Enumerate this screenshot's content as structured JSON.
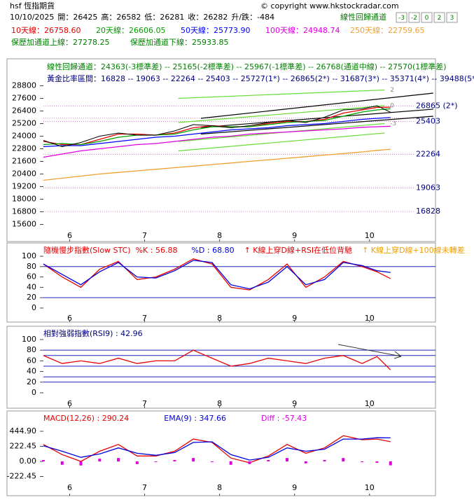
{
  "header": {
    "symbol": "hsf 恆指期貨",
    "copyright": "© copyright www.hkstockradar.com",
    "channel_title": "線性回歸通道",
    "channel_buttons": [
      -3,
      -2,
      0,
      2,
      3
    ],
    "date": "10/10/2025",
    "quotes": [
      {
        "label": "開：",
        "value": 26425
      },
      {
        "label": "高：",
        "value": 26582
      },
      {
        "label": "低：",
        "value": 26281
      },
      {
        "label": "收：",
        "value": 26282
      },
      {
        "label": "升/跌：",
        "value": -484
      }
    ]
  },
  "chart_data": [
    {
      "type": "line",
      "xlim": [
        5.65,
        10.88
      ],
      "xticks": [
        6,
        7,
        8,
        9,
        10
      ],
      "ylim": [
        15100,
        29500
      ],
      "yticks": [
        28800,
        27600,
        26400,
        25200,
        24000,
        22800,
        21600,
        20400,
        19200,
        18000,
        16800,
        15600
      ],
      "x": [
        5.65,
        5.9,
        6.15,
        6.4,
        6.65,
        6.9,
        7.15,
        7.4,
        7.65,
        7.9,
        8.15,
        8.4,
        8.65,
        8.9,
        9.15,
        9.4,
        9.65,
        9.9,
        10.1,
        10.28
      ],
      "values": [
        23600,
        23000,
        23400,
        24000,
        24300,
        24100,
        24100,
        24500,
        25100,
        25000,
        24800,
        25000,
        25300,
        25500,
        25300,
        25800,
        26500,
        26600,
        26900,
        26282
      ],
      "color": "#000000",
      "series": [
        {
          "name": "10天線：",
          "color": "#e60000",
          "last": 26758.6,
          "last_label": "26758.60",
          "values": [
            23500,
            23200,
            23200,
            23700,
            24200,
            24200,
            24100,
            24300,
            24800,
            25000,
            24900,
            24900,
            25200,
            25400,
            25400,
            25600,
            26200,
            26500,
            26750,
            26758
          ]
        },
        {
          "name": "20天線：",
          "color": "#00a000",
          "last": 26606.05,
          "values": [
            23200,
            23300,
            23200,
            23500,
            23900,
            24100,
            24100,
            24200,
            24600,
            24900,
            24900,
            24900,
            25100,
            25300,
            25400,
            25500,
            25900,
            26300,
            26500,
            26606
          ]
        },
        {
          "name": "50天線：",
          "color": "#0000ff",
          "last": 25773.9,
          "last_label": "25773.90",
          "values": [
            23000,
            23100,
            23100,
            23300,
            23500,
            23700,
            23900,
            24000,
            24200,
            24400,
            24600,
            24700,
            24800,
            25000,
            25100,
            25200,
            25400,
            25600,
            25700,
            25774
          ]
        },
        {
          "name": "100天線：",
          "color": "#e000e0",
          "last": 24948.74,
          "values": [
            22000,
            22300,
            22600,
            22800,
            23000,
            23200,
            23300,
            23500,
            23700,
            23900,
            24000,
            24200,
            24300,
            24400,
            24500,
            24600,
            24700,
            24850,
            24900,
            24949
          ]
        },
        {
          "name": "250天線：",
          "color": "#f0a030",
          "last": 22759.65,
          "values": [
            19800,
            20000,
            20200,
            20400,
            20550,
            20700,
            20850,
            21000,
            21150,
            21300,
            21450,
            21600,
            21750,
            21900,
            22050,
            22200,
            22350,
            22500,
            22650,
            22760
          ]
        }
      ],
      "bollinger": [
        {
          "name": "保歷加通道上線：",
          "last": 27278.25
        },
        {
          "name": "保歷加通道下線：",
          "last": 25933.85
        }
      ],
      "bollinger_color": "#008000",
      "regression": {
        "title": "線性回歸通道：",
        "color": "#008000",
        "levels": [
          {
            "value": 24363,
            "label": "(-3標準差) -- "
          },
          {
            "value": 25165,
            "label": "(-2標準差) -- "
          },
          {
            "value": 25967,
            "label": "(-1標準差) -- "
          },
          {
            "value": 26768,
            "label": "(通道中線) -- "
          },
          {
            "value": 27570,
            "label": "(1標準差)"
          }
        ]
      },
      "golden": {
        "title": "黃金比率區間：",
        "color": "#000080",
        "line_color": "#d080d0",
        "levels": [
          {
            "value": 16828,
            "label": " -- ",
            "chart": true
          },
          {
            "value": 19063,
            "label": " -- ",
            "chart": true
          },
          {
            "value": 22264,
            "label": " -- ",
            "chart": true
          },
          {
            "value": 25403,
            "label": " -- ",
            "chart": true
          },
          {
            "value": 25727,
            "label": "(1*) -- "
          },
          {
            "value": 26865,
            "label": "(2*) -- ",
            "chart": true,
            "chart_tag": " (2*)"
          },
          {
            "value": 31687,
            "label": "(3*) -- "
          },
          {
            "value": 35371,
            "label": "(4*) -- "
          },
          {
            "value": 39488,
            "label": "(5*)"
          }
        ]
      },
      "channel_lines": [
        {
          "color": "#000000",
          "x": [
            7.75,
            10.85
          ],
          "values": [
            25700,
            28100
          ]
        },
        {
          "color": "#000000",
          "x": [
            7.75,
            10.85
          ],
          "values": [
            24830,
            26570
          ]
        },
        {
          "color": "#000000",
          "x": [
            7.75,
            10.85
          ],
          "values": [
            24200,
            25900
          ]
        },
        {
          "color": "#66dd33",
          "x": [
            7.45,
            10.2
          ],
          "values": [
            27600,
            28400
          ],
          "label": "2"
        },
        {
          "color": "#66dd33",
          "x": [
            7.45,
            10.2
          ],
          "values": [
            25300,
            26900
          ],
          "label": "0"
        },
        {
          "color": "#66dd33",
          "x": [
            7.45,
            10.2
          ],
          "values": [
            23500,
            25200
          ],
          "label": "-3"
        },
        {
          "color": "#66dd33",
          "x": [
            7.45,
            10.2
          ],
          "values": [
            22600,
            24300
          ]
        }
      ]
    },
    {
      "type": "line",
      "title": "隨機慢步指數(Slow STC)  ",
      "title_color": "#e60000",
      "xlim": [
        5.65,
        10.88
      ],
      "xticks": [
        6,
        7,
        8,
        9,
        10
      ],
      "ylim": [
        -9.5,
        121.6
      ],
      "yticks": [
        0,
        20,
        40,
        60,
        80,
        100
      ],
      "ref_lines": [
        20,
        80
      ],
      "ref_color": "#2020c0",
      "x": [
        5.65,
        5.9,
        6.15,
        6.4,
        6.65,
        6.9,
        7.15,
        7.4,
        7.65,
        7.9,
        8.15,
        8.4,
        8.65,
        8.9,
        9.15,
        9.4,
        9.65,
        9.9,
        10.1,
        10.28
      ],
      "series": [
        {
          "name": "%K : ",
          "color": "#e60000",
          "last": 56.88,
          "values": [
            85,
            60,
            40,
            75,
            90,
            55,
            60,
            75,
            95,
            85,
            40,
            35,
            55,
            85,
            40,
            60,
            90,
            80,
            70,
            56.88
          ]
        },
        {
          "name": "%D : ",
          "color": "#0000e0",
          "last": 68.8,
          "last_label": "68.80",
          "values": [
            85,
            65,
            45,
            70,
            88,
            60,
            58,
            72,
            92,
            88,
            45,
            37,
            50,
            80,
            45,
            55,
            88,
            82,
            72,
            68.8
          ]
        }
      ],
      "annotations": [
        {
          "text": "↑ K線上穿D線+RSI在低位背馳",
          "color": "#e60000"
        },
        {
          "text": "↑ K線上穿D線+100線未轉差",
          "color": "#f0a000"
        }
      ]
    },
    {
      "type": "line",
      "title": "相對強弱指數(RSI9) : ",
      "title_color": "#000080",
      "last": 42.96,
      "xlim": [
        5.65,
        10.88
      ],
      "xticks": [
        6,
        7,
        8,
        9,
        10
      ],
      "ylim": [
        -9.2,
        119.7
      ],
      "yticks": [
        0,
        20,
        40,
        60,
        80,
        100
      ],
      "ref_lines": [
        20,
        30,
        50,
        70,
        80
      ],
      "ref_color": "#2020c0",
      "x": [
        5.65,
        5.9,
        6.15,
        6.4,
        6.65,
        6.9,
        7.15,
        7.4,
        7.65,
        7.9,
        8.15,
        8.4,
        8.65,
        8.9,
        9.15,
        9.4,
        9.65,
        9.9,
        10.1,
        10.28
      ],
      "series": [
        {
          "color": "#e60000",
          "values": [
            70,
            55,
            60,
            55,
            65,
            55,
            60,
            60,
            80,
            65,
            50,
            55,
            65,
            60,
            55,
            65,
            70,
            55,
            68,
            42.96
          ]
        }
      ]
    },
    {
      "type": "line",
      "xlim": [
        5.65,
        10.88
      ],
      "xticks": [
        6,
        7,
        8,
        9,
        10
      ],
      "ylim": [
        -476,
        558.7
      ],
      "yticks": [
        {
          "value": 444.9,
          "label": "444.90"
        },
        222.45,
        {
          "value": 0,
          "label": "0.00"
        },
        -222.45
      ],
      "x": [
        5.65,
        5.9,
        6.15,
        6.4,
        6.65,
        6.9,
        7.15,
        7.4,
        7.65,
        7.9,
        8.15,
        8.4,
        8.65,
        8.9,
        9.15,
        9.4,
        9.65,
        9.9,
        10.1,
        10.28
      ],
      "series": [
        {
          "name": "MACD(12,26) : ",
          "color": "#e60000",
          "last": 290.24,
          "values": [
            250,
            100,
            0,
            150,
            250,
            80,
            80,
            150,
            330,
            280,
            50,
            -20,
            80,
            250,
            120,
            200,
            380,
            320,
            330,
            290.24
          ]
        },
        {
          "name": "EMA(9) : ",
          "color": "#0000e0",
          "last": 347.66,
          "values": [
            230,
            150,
            60,
            110,
            200,
            120,
            90,
            130,
            280,
            290,
            100,
            20,
            60,
            200,
            150,
            180,
            330,
            330,
            350,
            347.66
          ]
        },
        {
          "name": "Diff : ",
          "color": "#e000e0",
          "type": "bar",
          "last": -57.43,
          "values": [
            20,
            -50,
            -60,
            40,
            50,
            -40,
            -10,
            20,
            50,
            -10,
            -50,
            -40,
            20,
            50,
            -30,
            20,
            50,
            -10,
            -20,
            -57.43
          ]
        }
      ]
    }
  ]
}
